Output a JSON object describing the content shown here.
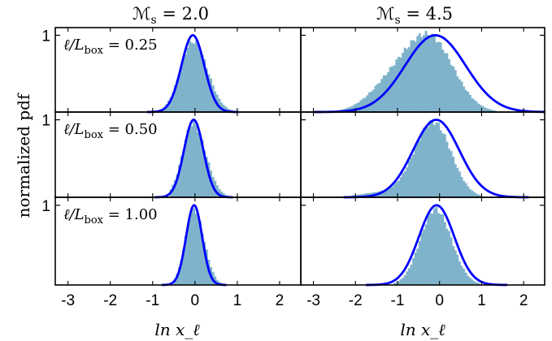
{
  "chart_data": {
    "type": "histogram-grid",
    "ylabel": "normalized pdf",
    "xlabel": "ln x_ℓ",
    "columns": [
      {
        "title_main": "ℳ",
        "title_sub": "s",
        "title_rest": " = 2.0"
      },
      {
        "title_main": "ℳ",
        "title_sub": "s",
        "title_rest": " = 4.5"
      }
    ],
    "rows": [
      {
        "label_main": "ℓ/L",
        "label_sub": "box",
        "label_rest": " = 0.25"
      },
      {
        "label_main": "ℓ/L",
        "label_sub": "box",
        "label_rest": " = 0.50"
      },
      {
        "label_main": "ℓ/L",
        "label_sub": "box",
        "label_rest": " = 1.00"
      }
    ],
    "xlim": [
      -3.3,
      2.5
    ],
    "ylim": [
      0,
      1.1
    ],
    "xticks": [
      -3,
      -2,
      -1,
      0,
      1,
      2
    ],
    "xtick_labels": [
      "-3",
      "-2",
      "-1",
      "0",
      "1",
      "2"
    ],
    "ytick_label": "1",
    "colors": {
      "histogram": "#7fb3cb",
      "fit": "#0000ff"
    },
    "panels": [
      {
        "row": 0,
        "col": 0,
        "fit_mean": -0.05,
        "fit_sigma": 0.27,
        "hist_sigma_left": 0.3,
        "hist_sigma_right": 0.34,
        "hist_peak": 0.92,
        "hist_mean": -0.05,
        "tail_amp": 0.0,
        "tail_mean": 0.0,
        "tail_sigma": 0.3,
        "hist_range": [
          -0.75,
          1.05
        ]
      },
      {
        "row": 0,
        "col": 1,
        "fit_mean": -0.1,
        "fit_sigma": 0.72,
        "hist_sigma_left": 0.55,
        "hist_sigma_right": 0.55,
        "hist_peak": 0.9,
        "hist_mean": -0.2,
        "tail_amp": 0.38,
        "tail_mean": -1.1,
        "tail_sigma": 0.55,
        "hist_range": [
          -2.9,
          1.3
        ]
      },
      {
        "row": 1,
        "col": 0,
        "fit_mean": -0.03,
        "fit_sigma": 0.23,
        "hist_sigma_left": 0.25,
        "hist_sigma_right": 0.3,
        "hist_peak": 0.95,
        "hist_mean": -0.05,
        "tail_amp": 0.0,
        "tail_mean": 0.0,
        "tail_sigma": 0.3,
        "hist_range": [
          -0.6,
          1.0
        ]
      },
      {
        "row": 1,
        "col": 1,
        "fit_mean": -0.08,
        "fit_sigma": 0.55,
        "hist_sigma_left": 0.45,
        "hist_sigma_right": 0.42,
        "hist_peak": 0.97,
        "hist_mean": -0.15,
        "tail_amp": 0.06,
        "tail_mean": -1.4,
        "tail_sigma": 0.5,
        "hist_range": [
          -2.1,
          1.0
        ]
      },
      {
        "row": 2,
        "col": 0,
        "fit_mean": -0.02,
        "fit_sigma": 0.19,
        "hist_sigma_left": 0.2,
        "hist_sigma_right": 0.24,
        "hist_peak": 0.96,
        "hist_mean": -0.03,
        "tail_amp": 0.0,
        "tail_mean": 0.0,
        "tail_sigma": 0.3,
        "hist_range": [
          -0.5,
          0.7
        ]
      },
      {
        "row": 2,
        "col": 1,
        "fit_mean": -0.07,
        "fit_sigma": 0.42,
        "hist_sigma_left": 0.36,
        "hist_sigma_right": 0.38,
        "hist_peak": 0.95,
        "hist_mean": -0.1,
        "tail_amp": 0.0,
        "tail_mean": 0.0,
        "tail_sigma": 0.3,
        "hist_range": [
          -1.1,
          0.95
        ]
      }
    ]
  }
}
